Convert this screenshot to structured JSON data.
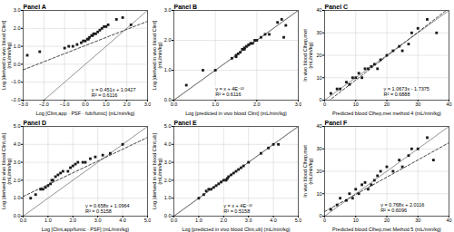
{
  "chart_data": [
    {
      "type": "scatter",
      "title": "Panel A",
      "xlabel": "Log [Clint,app · PSF · fub/fumic] (mL/min/kg)",
      "ylabel": "Log [derived in vivo blood Clint]\n(mL/min/kg)",
      "xlim": [
        -3,
        3
      ],
      "ylim": [
        -2,
        3
      ],
      "xticks": [
        -3,
        -2,
        -1,
        0,
        1,
        2,
        3
      ],
      "yticks": [
        -2,
        -1,
        0,
        1,
        2,
        3
      ],
      "grid": true,
      "color": "#1a1a1a",
      "marker": "square",
      "x": [
        -2.8,
        -2.2,
        -1.0,
        -0.8,
        -0.6,
        -0.4,
        -0.2,
        -0.1,
        0.0,
        0.1,
        0.15,
        0.2,
        0.3,
        0.35,
        0.4,
        0.5,
        0.6,
        0.7,
        0.8,
        0.9,
        1.0,
        1.1,
        1.5,
        1.8,
        2.2
      ],
      "values": [
        0.5,
        0.7,
        0.9,
        1.0,
        1.0,
        1.1,
        1.2,
        1.3,
        1.3,
        1.4,
        1.4,
        1.5,
        1.6,
        1.6,
        1.7,
        1.7,
        1.8,
        1.9,
        2.0,
        2.1,
        2.1,
        2.2,
        2.5,
        2.6,
        2.2
      ],
      "reference_line": {
        "x": [
          -2,
          3
        ],
        "y": [
          -2,
          3
        ],
        "color": "#888888"
      },
      "fit_line": {
        "slope": 0.451,
        "intercept": 1.0427,
        "line_style": "dashed",
        "color": "#333333"
      },
      "annotations": [
        {
          "text": "y = 0.451x + 1.0427\nR² = 0.6116",
          "x": 0.3,
          "y": -1.8
        }
      ]
    },
    {
      "type": "scatter",
      "title": "Panel B",
      "xlabel": "Log [predicted in vivo blood Clint] (mL/min/kg)",
      "ylabel": "Log [derived in vivo blood Clint]\n(mL/min/kg)",
      "xlim": [
        0,
        3
      ],
      "ylim": [
        0,
        3
      ],
      "xticks": [
        0,
        1,
        2,
        3
      ],
      "yticks": [
        0,
        1,
        2,
        3
      ],
      "grid": true,
      "color": "#1a1a1a",
      "marker": "square",
      "x": [
        0.3,
        0.7,
        1.0,
        1.4,
        1.5,
        1.5,
        1.55,
        1.6,
        1.65,
        1.7,
        1.7,
        1.75,
        1.8,
        1.85,
        1.9,
        1.95,
        2.0,
        2.1,
        2.2,
        2.3,
        2.5,
        2.6,
        2.65,
        2.7
      ],
      "values": [
        0.5,
        1.0,
        1.0,
        1.4,
        1.45,
        1.5,
        1.55,
        1.6,
        1.7,
        1.7,
        1.75,
        1.8,
        1.85,
        1.9,
        1.9,
        2.0,
        2.0,
        2.1,
        2.2,
        2.2,
        2.6,
        2.7,
        2.1,
        2.5
      ],
      "reference_line": {
        "x": [
          0,
          3
        ],
        "y": [
          0,
          3
        ],
        "color": "#888888"
      },
      "fit_line": {
        "slope": 1.0,
        "intercept": 0.0,
        "line_style": "solid",
        "color": "#777777"
      },
      "annotations": [
        {
          "text": "y = x + 4E⁻¹³\nR² = 0.6116",
          "x": 1.0,
          "y": 0.15
        }
      ]
    },
    {
      "type": "scatter",
      "title": "Panel C",
      "xlabel": "Predicted blood Clhep,met method 4 (mL/min/kg)",
      "ylabel": "In vivo blood Clhep,met\n(mL/min/kg)",
      "xlim": [
        0,
        40
      ],
      "ylim": [
        0,
        40
      ],
      "xticks": [
        0,
        10,
        20,
        30,
        40
      ],
      "yticks": [
        0,
        10,
        20,
        30,
        40
      ],
      "grid": true,
      "color": "#1a1a1a",
      "marker": "square",
      "x": [
        2,
        4,
        5,
        7,
        8,
        9,
        10,
        11,
        12,
        13,
        14,
        15,
        16,
        17,
        18,
        20,
        22,
        24,
        25,
        27,
        28,
        30,
        33,
        36
      ],
      "values": [
        3,
        5,
        5,
        8,
        7,
        10,
        10,
        12,
        10,
        14,
        14,
        15,
        16,
        14,
        18,
        20,
        22,
        24,
        22,
        25,
        30,
        32,
        36,
        30
      ],
      "reference_line": {
        "x": [
          0,
          40
        ],
        "y": [
          0,
          40
        ],
        "color": "#888888"
      },
      "fit_line": {
        "slope": 1.0673,
        "intercept": -1.7375,
        "line_style": "dashed",
        "color": "#333333"
      },
      "annotations": [
        {
          "text": "y = 1.0673x - 1.7375\nR² = 0.6888",
          "x": 19,
          "y": 2
        }
      ]
    },
    {
      "type": "scatter",
      "title": "Panel D",
      "xlabel": "Log [Clint,app/fumic · PSF] (mL/min/kg)",
      "ylabel": "Log [derived in vivo blood Clint,ub]\n(mL/min/kg)",
      "xlim": [
        0,
        5
      ],
      "ylim": [
        0,
        5
      ],
      "xticks": [
        0,
        1,
        2,
        3,
        4,
        5
      ],
      "yticks": [
        0,
        1,
        2,
        3,
        4,
        5
      ],
      "grid": true,
      "color": "#1a1a1a",
      "marker": "square",
      "x": [
        0.3,
        0.5,
        0.7,
        0.8,
        0.9,
        1.0,
        1.1,
        1.15,
        1.2,
        1.3,
        1.4,
        1.5,
        1.6,
        1.8,
        1.9,
        2.0,
        2.1,
        2.2,
        2.4,
        2.5,
        2.7,
        2.9,
        3.2,
        3.5,
        4.0
      ],
      "values": [
        1.0,
        1.2,
        1.5,
        1.5,
        1.6,
        1.7,
        1.8,
        2.0,
        2.0,
        2.2,
        2.3,
        2.4,
        2.5,
        2.5,
        2.7,
        2.8,
        2.9,
        3.0,
        3.0,
        3.0,
        3.2,
        3.3,
        3.4,
        3.5,
        4.0
      ],
      "reference_line": {
        "x": [
          0,
          5
        ],
        "y": [
          0,
          5
        ],
        "color": "#888888"
      },
      "fit_line": {
        "slope": 0.658,
        "intercept": 1.0964,
        "line_style": "dashed",
        "color": "#333333"
      },
      "annotations": [
        {
          "text": "y = 0.658x + 1.0964\nR² = 0.5158",
          "x": 2.5,
          "y": 0.2
        }
      ]
    },
    {
      "type": "scatter",
      "title": "Panel E",
      "xlabel": "Log [predicted in vivo blood Clint,ub] (mL/min/kg)",
      "ylabel": "Log [derived in vivo blood Clint,ub]\n(mL/min/kg)",
      "xlim": [
        0,
        5
      ],
      "ylim": [
        0,
        5
      ],
      "xticks": [
        0,
        1,
        2,
        3,
        4,
        5
      ],
      "yticks": [
        0,
        1,
        2,
        3,
        4,
        5
      ],
      "grid": true,
      "color": "#1a1a1a",
      "marker": "square",
      "x": [
        1.0,
        1.2,
        1.3,
        1.4,
        1.5,
        1.6,
        1.7,
        1.8,
        1.9,
        2.0,
        2.1,
        2.15,
        2.2,
        2.3,
        2.4,
        2.5,
        2.6,
        2.7,
        2.8,
        3.0,
        3.5,
        3.8,
        4.0,
        4.2
      ],
      "values": [
        1.0,
        1.2,
        1.4,
        1.5,
        1.5,
        1.6,
        1.7,
        1.8,
        1.9,
        2.0,
        2.0,
        2.1,
        2.2,
        2.3,
        2.4,
        2.5,
        2.6,
        2.7,
        2.8,
        3.0,
        3.5,
        3.8,
        4.0,
        4.0
      ],
      "reference_line": {
        "x": [
          0,
          5
        ],
        "y": [
          0,
          5
        ],
        "color": "#888888"
      },
      "fit_line": {
        "slope": 1.0,
        "intercept": 0.0,
        "line_style": "solid",
        "color": "#777777"
      },
      "annotations": [
        {
          "text": "y = x + 4E⁻¹³\nR² = 0.5158",
          "x": 2.0,
          "y": 0.2
        }
      ]
    },
    {
      "type": "scatter",
      "title": "Panel F",
      "xlabel": "Predicted blood Clhep,met Method 5 (mL/min/kg)",
      "ylabel": "In vivo blood Clhep,met\n(mL/min/kg)",
      "xlim": [
        0,
        40
      ],
      "ylim": [
        0,
        40
      ],
      "xticks": [
        0,
        10,
        20,
        30,
        40
      ],
      "yticks": [
        0,
        10,
        20,
        30,
        40
      ],
      "grid": true,
      "color": "#1a1a1a",
      "marker": "square",
      "x": [
        2,
        4,
        5,
        7,
        8,
        9,
        10,
        11,
        12,
        13,
        14,
        15,
        16,
        17,
        18,
        20,
        22,
        24,
        25,
        27,
        28,
        30,
        33,
        35
      ],
      "values": [
        3,
        5,
        8,
        7,
        10,
        8,
        12,
        10,
        14,
        15,
        12,
        14,
        16,
        18,
        20,
        22,
        20,
        25,
        22,
        27,
        30,
        30,
        35,
        25
      ],
      "reference_line": {
        "x": [
          0,
          40
        ],
        "y": [
          0,
          40
        ],
        "color": "#888888"
      },
      "fit_line": {
        "slope": 0.768,
        "intercept": 2.0116,
        "line_style": "dashed",
        "color": "#333333"
      },
      "annotations": [
        {
          "text": "y = 0.768x + 2.0116\nR² = 0.6096",
          "x": 18,
          "y": 2
        }
      ]
    }
  ]
}
